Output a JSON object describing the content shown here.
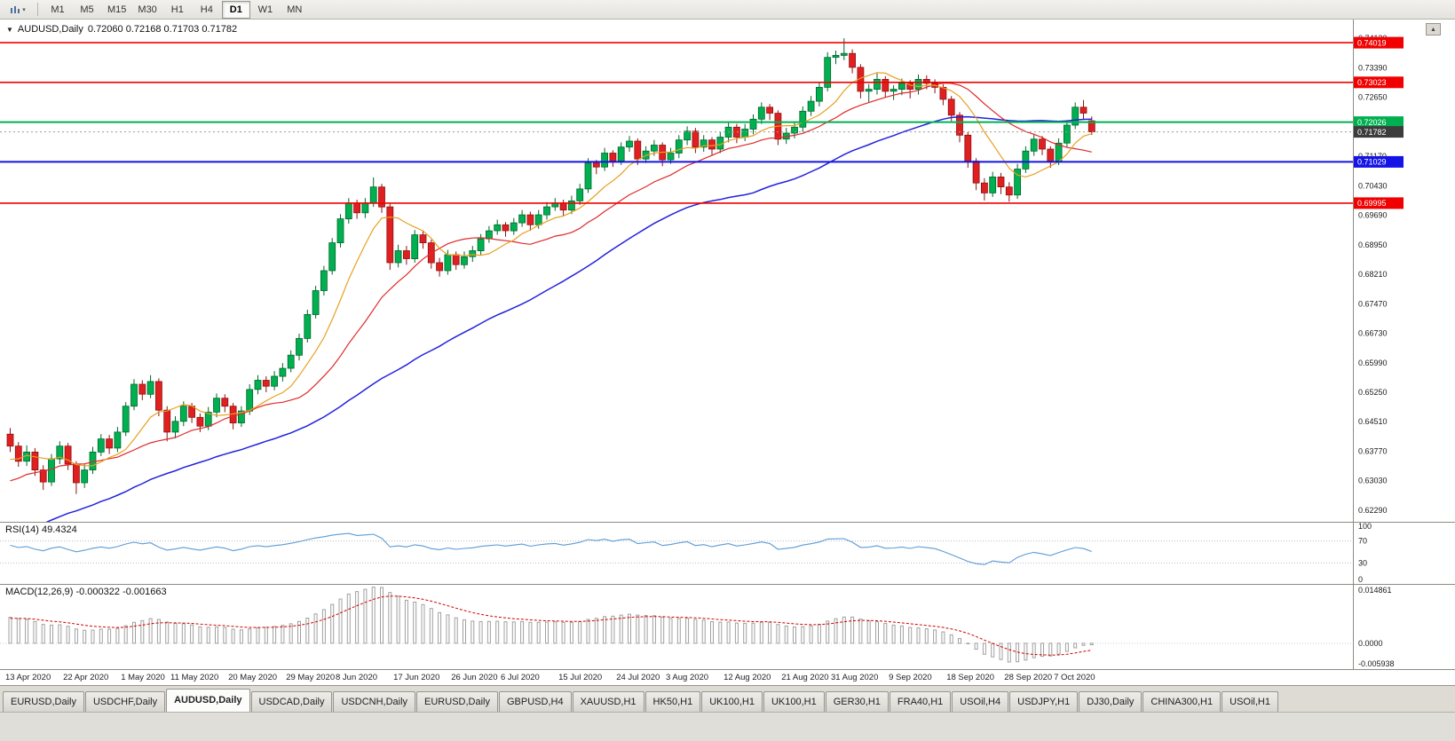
{
  "icons": {
    "chart_dropdown": "▾",
    "header_collapse": "▼",
    "scroll_up": "▲"
  },
  "toolbar": {
    "timeframes": [
      "M1",
      "M5",
      "M15",
      "M30",
      "H1",
      "H4",
      "D1",
      "W1",
      "MN"
    ],
    "active": "D1"
  },
  "chart": {
    "title": "AUDUSD,Daily",
    "ohlc_display": "0.72060 0.72168 0.71703 0.71782"
  },
  "price_scale": {
    "labels": [
      "0.74130",
      "0.73390",
      "0.72650",
      "0.71910",
      "0.71170",
      "0.70430",
      "0.69690",
      "0.68950",
      "0.68210",
      "0.67470",
      "0.66730",
      "0.65990",
      "0.65250",
      "0.64510",
      "0.63770",
      "0.63030",
      "0.62290"
    ]
  },
  "levels": [
    {
      "price": 0.74019,
      "label": "0.74019",
      "color": "#f00000",
      "width": 1.6
    },
    {
      "price": 0.73023,
      "label": "0.73023",
      "color": "#f00000",
      "width": 1.6
    },
    {
      "price": 0.72026,
      "label": "0.72026",
      "color": "#00b050",
      "width": 2
    },
    {
      "price": 0.71029,
      "label": "0.71029",
      "color": "#1414e6",
      "width": 2
    },
    {
      "price": 0.69995,
      "label": "0.69995",
      "color": "#f00000",
      "width": 1.6
    }
  ],
  "current_price": {
    "value": 0.71782,
    "label": "0.71782",
    "tag_color": "#3c3c3c"
  },
  "rsi": {
    "label": "RSI(14) 49.4324",
    "period": 14,
    "value": 49.4324,
    "color": "#5b9bd5",
    "dashed": [
      70,
      30
    ],
    "levels": [
      {
        "v": 100,
        "label": "100"
      },
      {
        "v": 70,
        "label": "70"
      },
      {
        "v": 30,
        "label": "30"
      },
      {
        "v": 0,
        "label": "0"
      }
    ]
  },
  "macd": {
    "label": "MACD(12,26,9) -0.000322 -0.001663",
    "fast": 12,
    "slow": 26,
    "signal_period": 9,
    "value": -0.000322,
    "signal": -0.001663,
    "signal_color": "#d00000",
    "histogram_color": "#a0a0a0",
    "scale": {
      "top": {
        "v": 0.014861,
        "label": "0.014861"
      },
      "zero": {
        "v": 0,
        "label": "0.0000"
      },
      "bottom": {
        "v": -0.005938,
        "label": "-0.005938"
      }
    }
  },
  "tabs": [
    "EURUSD,Daily",
    "USDCHF,Daily",
    "AUDUSD,Daily",
    "USDCAD,Daily",
    "USDCNH,Daily",
    "EURUSD,Daily",
    "GBPUSD,H4",
    "XAUUSD,H1",
    "HK50,H1",
    "UK100,H1",
    "UK100,H1",
    "GER30,H1",
    "FRA40,H1",
    "USOil,H4",
    "USDJPY,H1",
    "DJ30,Daily",
    "CHINA300,H1",
    "USOil,H1"
  ],
  "active_tab_index": 2,
  "chart_data": {
    "type": "candlestick",
    "symbol": "AUDUSD",
    "timeframe": "Daily",
    "ylim": [
      0.62,
      0.746
    ],
    "ohlc_current": {
      "open": 0.7206,
      "high": 0.72168,
      "low": 0.71703,
      "close": 0.71782
    },
    "colors": {
      "bull": "#00b050",
      "bull_stroke": "#00662c",
      "bear": "#e02020",
      "bear_stroke": "#8c1212"
    },
    "ma_lines": [
      {
        "period": 45,
        "color": "#2222dd",
        "width": 1.5
      },
      {
        "period": 18,
        "color": "#e02828",
        "width": 1.2
      },
      {
        "period": 8,
        "color": "#e8a020",
        "width": 1.2
      }
    ],
    "x_labels": [
      [
        "13 Apr 2020",
        0
      ],
      [
        "22 Apr 2020",
        7
      ],
      [
        "1 May 2020",
        14
      ],
      [
        "11 May 2020",
        20
      ],
      [
        "20 May 2020",
        27
      ],
      [
        "29 May 2020",
        34
      ],
      [
        "8 Jun 2020",
        40
      ],
      [
        "17 Jun 2020",
        47
      ],
      [
        "26 Jun 2020",
        54
      ],
      [
        "6 Jul 2020",
        60
      ],
      [
        "15 Jul 2020",
        67
      ],
      [
        "24 Jul 2020",
        74
      ],
      [
        "3 Aug 2020",
        80
      ],
      [
        "12 Aug 2020",
        87
      ],
      [
        "21 Aug 2020",
        94
      ],
      [
        "31 Aug 2020",
        100
      ],
      [
        "9 Sep 2020",
        107
      ],
      [
        "18 Sep 2020",
        114
      ],
      [
        "28 Sep 2020",
        121
      ],
      [
        "7 Oct 2020",
        127
      ]
    ],
    "candles": [
      [
        0.642,
        0.6435,
        0.6375,
        0.639
      ],
      [
        0.639,
        0.64,
        0.6338,
        0.6352
      ],
      [
        0.6352,
        0.6392,
        0.634,
        0.6375
      ],
      [
        0.6375,
        0.6385,
        0.6315,
        0.633
      ],
      [
        0.633,
        0.6342,
        0.628,
        0.63
      ],
      [
        0.63,
        0.637,
        0.629,
        0.6358
      ],
      [
        0.6358,
        0.6402,
        0.6345,
        0.639
      ],
      [
        0.639,
        0.6398,
        0.633,
        0.6345
      ],
      [
        0.6345,
        0.6352,
        0.627,
        0.6298
      ],
      [
        0.6298,
        0.6345,
        0.6285,
        0.633
      ],
      [
        0.633,
        0.6388,
        0.632,
        0.6375
      ],
      [
        0.6375,
        0.642,
        0.6365,
        0.6408
      ],
      [
        0.6408,
        0.6418,
        0.637,
        0.6385
      ],
      [
        0.6385,
        0.6438,
        0.6375,
        0.6425
      ],
      [
        0.6425,
        0.65,
        0.6415,
        0.649
      ],
      [
        0.649,
        0.6558,
        0.648,
        0.6545
      ],
      [
        0.6545,
        0.6555,
        0.6505,
        0.652
      ],
      [
        0.652,
        0.6568,
        0.651,
        0.6552
      ],
      [
        0.6552,
        0.656,
        0.6465,
        0.648
      ],
      [
        0.648,
        0.649,
        0.6402,
        0.6425
      ],
      [
        0.6425,
        0.6465,
        0.641,
        0.6452
      ],
      [
        0.6452,
        0.6502,
        0.644,
        0.649
      ],
      [
        0.649,
        0.6498,
        0.6448,
        0.6462
      ],
      [
        0.6462,
        0.6472,
        0.6425,
        0.644
      ],
      [
        0.644,
        0.6488,
        0.643,
        0.6475
      ],
      [
        0.6475,
        0.6522,
        0.6462,
        0.651
      ],
      [
        0.651,
        0.652,
        0.6475,
        0.649
      ],
      [
        0.649,
        0.6498,
        0.6432,
        0.6448
      ],
      [
        0.6448,
        0.649,
        0.6438,
        0.6478
      ],
      [
        0.6478,
        0.6545,
        0.6468,
        0.6532
      ],
      [
        0.6532,
        0.6568,
        0.652,
        0.6555
      ],
      [
        0.6555,
        0.6565,
        0.6525,
        0.654
      ],
      [
        0.654,
        0.6578,
        0.653,
        0.6565
      ],
      [
        0.6565,
        0.6598,
        0.6552,
        0.6585
      ],
      [
        0.6585,
        0.663,
        0.6575,
        0.6618
      ],
      [
        0.6618,
        0.6672,
        0.6605,
        0.666
      ],
      [
        0.666,
        0.6732,
        0.665,
        0.672
      ],
      [
        0.672,
        0.6792,
        0.671,
        0.678
      ],
      [
        0.678,
        0.6842,
        0.6768,
        0.683
      ],
      [
        0.683,
        0.6912,
        0.682,
        0.69
      ],
      [
        0.69,
        0.6972,
        0.6888,
        0.696
      ],
      [
        0.696,
        0.7012,
        0.6948,
        0.7
      ],
      [
        0.7,
        0.7008,
        0.696,
        0.6975
      ],
      [
        0.6975,
        0.7012,
        0.6962,
        0.7
      ],
      [
        0.7,
        0.7064,
        0.699,
        0.704
      ],
      [
        0.704,
        0.7048,
        0.6975,
        0.699
      ],
      [
        0.699,
        0.6998,
        0.6832,
        0.685
      ],
      [
        0.685,
        0.6895,
        0.6838,
        0.688
      ],
      [
        0.688,
        0.6892,
        0.6845,
        0.686
      ],
      [
        0.686,
        0.6932,
        0.685,
        0.692
      ],
      [
        0.692,
        0.693,
        0.6885,
        0.69
      ],
      [
        0.69,
        0.6908,
        0.6835,
        0.685
      ],
      [
        0.685,
        0.6862,
        0.6815,
        0.683
      ],
      [
        0.683,
        0.6882,
        0.682,
        0.687
      ],
      [
        0.687,
        0.6878,
        0.6832,
        0.6845
      ],
      [
        0.6845,
        0.6878,
        0.6835,
        0.6865
      ],
      [
        0.6865,
        0.6892,
        0.6852,
        0.688
      ],
      [
        0.688,
        0.6922,
        0.687,
        0.691
      ],
      [
        0.691,
        0.6942,
        0.69,
        0.693
      ],
      [
        0.693,
        0.6958,
        0.692,
        0.6945
      ],
      [
        0.6945,
        0.6952,
        0.6915,
        0.693
      ],
      [
        0.693,
        0.6962,
        0.692,
        0.695
      ],
      [
        0.695,
        0.6982,
        0.694,
        0.697
      ],
      [
        0.697,
        0.6978,
        0.693,
        0.6945
      ],
      [
        0.6945,
        0.6982,
        0.6935,
        0.697
      ],
      [
        0.697,
        0.7002,
        0.6958,
        0.699
      ],
      [
        0.699,
        0.7012,
        0.698,
        0.7
      ],
      [
        0.7,
        0.7008,
        0.6968,
        0.6982
      ],
      [
        0.6982,
        0.7018,
        0.6972,
        0.7005
      ],
      [
        0.7005,
        0.7048,
        0.6995,
        0.7035
      ],
      [
        0.7035,
        0.7112,
        0.7025,
        0.71
      ],
      [
        0.71,
        0.7108,
        0.7072,
        0.709
      ],
      [
        0.709,
        0.7138,
        0.708,
        0.7125
      ],
      [
        0.7125,
        0.7132,
        0.709,
        0.7105
      ],
      [
        0.7105,
        0.7152,
        0.7095,
        0.714
      ],
      [
        0.714,
        0.7168,
        0.7128,
        0.7155
      ],
      [
        0.7155,
        0.7162,
        0.7095,
        0.711
      ],
      [
        0.711,
        0.7142,
        0.71,
        0.713
      ],
      [
        0.713,
        0.7158,
        0.7118,
        0.7145
      ],
      [
        0.7145,
        0.7152,
        0.7092,
        0.7108
      ],
      [
        0.7108,
        0.7138,
        0.7098,
        0.7125
      ],
      [
        0.7125,
        0.717,
        0.7112,
        0.7158
      ],
      [
        0.7158,
        0.7192,
        0.7145,
        0.718
      ],
      [
        0.718,
        0.7188,
        0.7125,
        0.714
      ],
      [
        0.714,
        0.717,
        0.7128,
        0.7158
      ],
      [
        0.7158,
        0.7165,
        0.712,
        0.7135
      ],
      [
        0.7135,
        0.7178,
        0.7125,
        0.7165
      ],
      [
        0.7165,
        0.7202,
        0.7152,
        0.719
      ],
      [
        0.719,
        0.7198,
        0.715,
        0.7165
      ],
      [
        0.7165,
        0.7198,
        0.7155,
        0.7185
      ],
      [
        0.7185,
        0.7222,
        0.7172,
        0.721
      ],
      [
        0.721,
        0.7252,
        0.7198,
        0.724
      ],
      [
        0.724,
        0.7248,
        0.7208,
        0.7225
      ],
      [
        0.7225,
        0.7232,
        0.7145,
        0.716
      ],
      [
        0.716,
        0.7188,
        0.7148,
        0.7175
      ],
      [
        0.7175,
        0.7202,
        0.7162,
        0.719
      ],
      [
        0.719,
        0.7242,
        0.7178,
        0.723
      ],
      [
        0.723,
        0.7268,
        0.7218,
        0.7255
      ],
      [
        0.7255,
        0.7302,
        0.7242,
        0.729
      ],
      [
        0.729,
        0.7378,
        0.728,
        0.7365
      ],
      [
        0.7365,
        0.7382,
        0.7348,
        0.737
      ],
      [
        0.737,
        0.7413,
        0.7358,
        0.7375
      ],
      [
        0.7375,
        0.7385,
        0.7325,
        0.734
      ],
      [
        0.734,
        0.7348,
        0.7262,
        0.728
      ],
      [
        0.728,
        0.7298,
        0.7252,
        0.7285
      ],
      [
        0.7285,
        0.7325,
        0.7272,
        0.731
      ],
      [
        0.731,
        0.7318,
        0.7265,
        0.728
      ],
      [
        0.728,
        0.7295,
        0.7258,
        0.7285
      ],
      [
        0.7285,
        0.7312,
        0.727,
        0.73
      ],
      [
        0.73,
        0.7308,
        0.7262,
        0.7285
      ],
      [
        0.7285,
        0.7322,
        0.7272,
        0.731
      ],
      [
        0.731,
        0.732,
        0.7285,
        0.73
      ],
      [
        0.73,
        0.731,
        0.7275,
        0.729
      ],
      [
        0.729,
        0.7298,
        0.7245,
        0.726
      ],
      [
        0.726,
        0.7268,
        0.7205,
        0.722
      ],
      [
        0.722,
        0.7228,
        0.7152,
        0.717
      ],
      [
        0.717,
        0.7178,
        0.7088,
        0.7105
      ],
      [
        0.7105,
        0.7112,
        0.7032,
        0.705
      ],
      [
        0.705,
        0.7062,
        0.7006,
        0.7025
      ],
      [
        0.7025,
        0.7078,
        0.7015,
        0.7065
      ],
      [
        0.7065,
        0.7075,
        0.7022,
        0.704
      ],
      [
        0.704,
        0.7052,
        0.7003,
        0.702
      ],
      [
        0.702,
        0.7098,
        0.701,
        0.7085
      ],
      [
        0.7085,
        0.7142,
        0.7075,
        0.713
      ],
      [
        0.713,
        0.7172,
        0.7118,
        0.716
      ],
      [
        0.716,
        0.7168,
        0.712,
        0.7135
      ],
      [
        0.7135,
        0.7142,
        0.7088,
        0.7105
      ],
      [
        0.7105,
        0.7162,
        0.7095,
        0.715
      ],
      [
        0.715,
        0.7208,
        0.714,
        0.7195
      ],
      [
        0.7195,
        0.7252,
        0.7185,
        0.724
      ],
      [
        0.724,
        0.7258,
        0.721,
        0.7225
      ],
      [
        0.7206,
        0.72168,
        0.71703,
        0.71782
      ]
    ]
  }
}
